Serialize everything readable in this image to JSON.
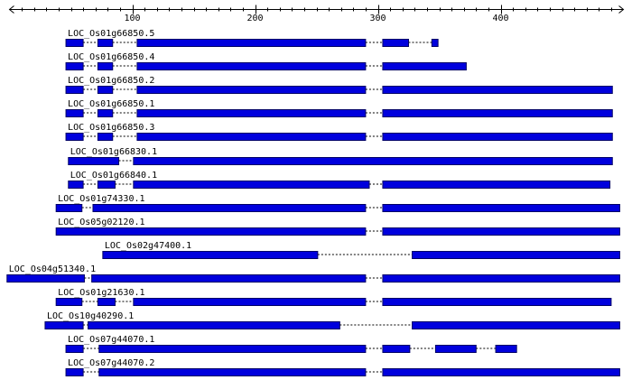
{
  "axis": {
    "min": 0,
    "max": 500,
    "major_step": 100,
    "minor_step": 10,
    "tick_labels": [
      "100",
      "200",
      "300",
      "400"
    ]
  },
  "colors": {
    "exon": "#0000dd",
    "exon_border": "#000066",
    "intron": "#000000",
    "axis": "#000000"
  },
  "tracks": [
    {
      "id": "LOC_Os01g66850.5",
      "exons": [
        [
          46,
          60
        ],
        [
          72,
          84
        ],
        [
          104,
          290
        ],
        [
          304,
          325
        ],
        [
          344,
          349
        ]
      ]
    },
    {
      "id": "LOC_Os01g66850.4",
      "exons": [
        [
          46,
          60
        ],
        [
          72,
          84
        ],
        [
          104,
          290
        ],
        [
          304,
          372
        ]
      ]
    },
    {
      "id": "LOC_Os01g66850.2",
      "exons": [
        [
          46,
          60
        ],
        [
          72,
          84
        ],
        [
          104,
          290
        ],
        [
          304,
          491
        ]
      ]
    },
    {
      "id": "LOC_Os01g66850.1",
      "exons": [
        [
          46,
          60
        ],
        [
          72,
          84
        ],
        [
          104,
          290
        ],
        [
          304,
          491
        ]
      ]
    },
    {
      "id": "LOC_Os01g66850.3",
      "exons": [
        [
          46,
          60
        ],
        [
          72,
          84
        ],
        [
          104,
          290
        ],
        [
          304,
          491
        ]
      ]
    },
    {
      "id": "LOC_Os01g66830.1",
      "exons": [
        [
          48,
          89
        ],
        [
          101,
          491
        ]
      ]
    },
    {
      "id": "LOC_Os01g66840.1",
      "exons": [
        [
          48,
          60
        ],
        [
          72,
          86
        ],
        [
          101,
          293
        ],
        [
          304,
          489
        ]
      ]
    },
    {
      "id": "LOC_Os01g74330.1",
      "exons": [
        [
          38,
          59
        ],
        [
          68,
          290
        ],
        [
          304,
          497
        ]
      ]
    },
    {
      "id": "LOC_Os05g02120.1",
      "exons": [
        [
          38,
          290
        ],
        [
          304,
          497
        ]
      ]
    },
    {
      "id": "LOC_Os02g47400.1",
      "exons": [
        [
          76,
          251
        ],
        [
          328,
          497
        ]
      ]
    },
    {
      "id": "LOC_Os04g51340.1",
      "exons": [
        [
          -2,
          61
        ],
        [
          67,
          290
        ],
        [
          304,
          497
        ]
      ]
    },
    {
      "id": "LOC_Os01g21630.1",
      "exons": [
        [
          38,
          59
        ],
        [
          72,
          86
        ],
        [
          101,
          290
        ],
        [
          304,
          490
        ]
      ]
    },
    {
      "id": "LOC_Os10g40290.1",
      "exons": [
        [
          29,
          60
        ],
        [
          64,
          269
        ],
        [
          328,
          497
        ]
      ]
    },
    {
      "id": "LOC_Os07g44070.1",
      "exons": [
        [
          46,
          60
        ],
        [
          73,
          290
        ],
        [
          304,
          326
        ],
        [
          347,
          380
        ],
        [
          396,
          413
        ]
      ]
    },
    {
      "id": "LOC_Os07g44070.2",
      "exons": [
        [
          46,
          60
        ],
        [
          73,
          290
        ],
        [
          304,
          497
        ]
      ]
    }
  ]
}
